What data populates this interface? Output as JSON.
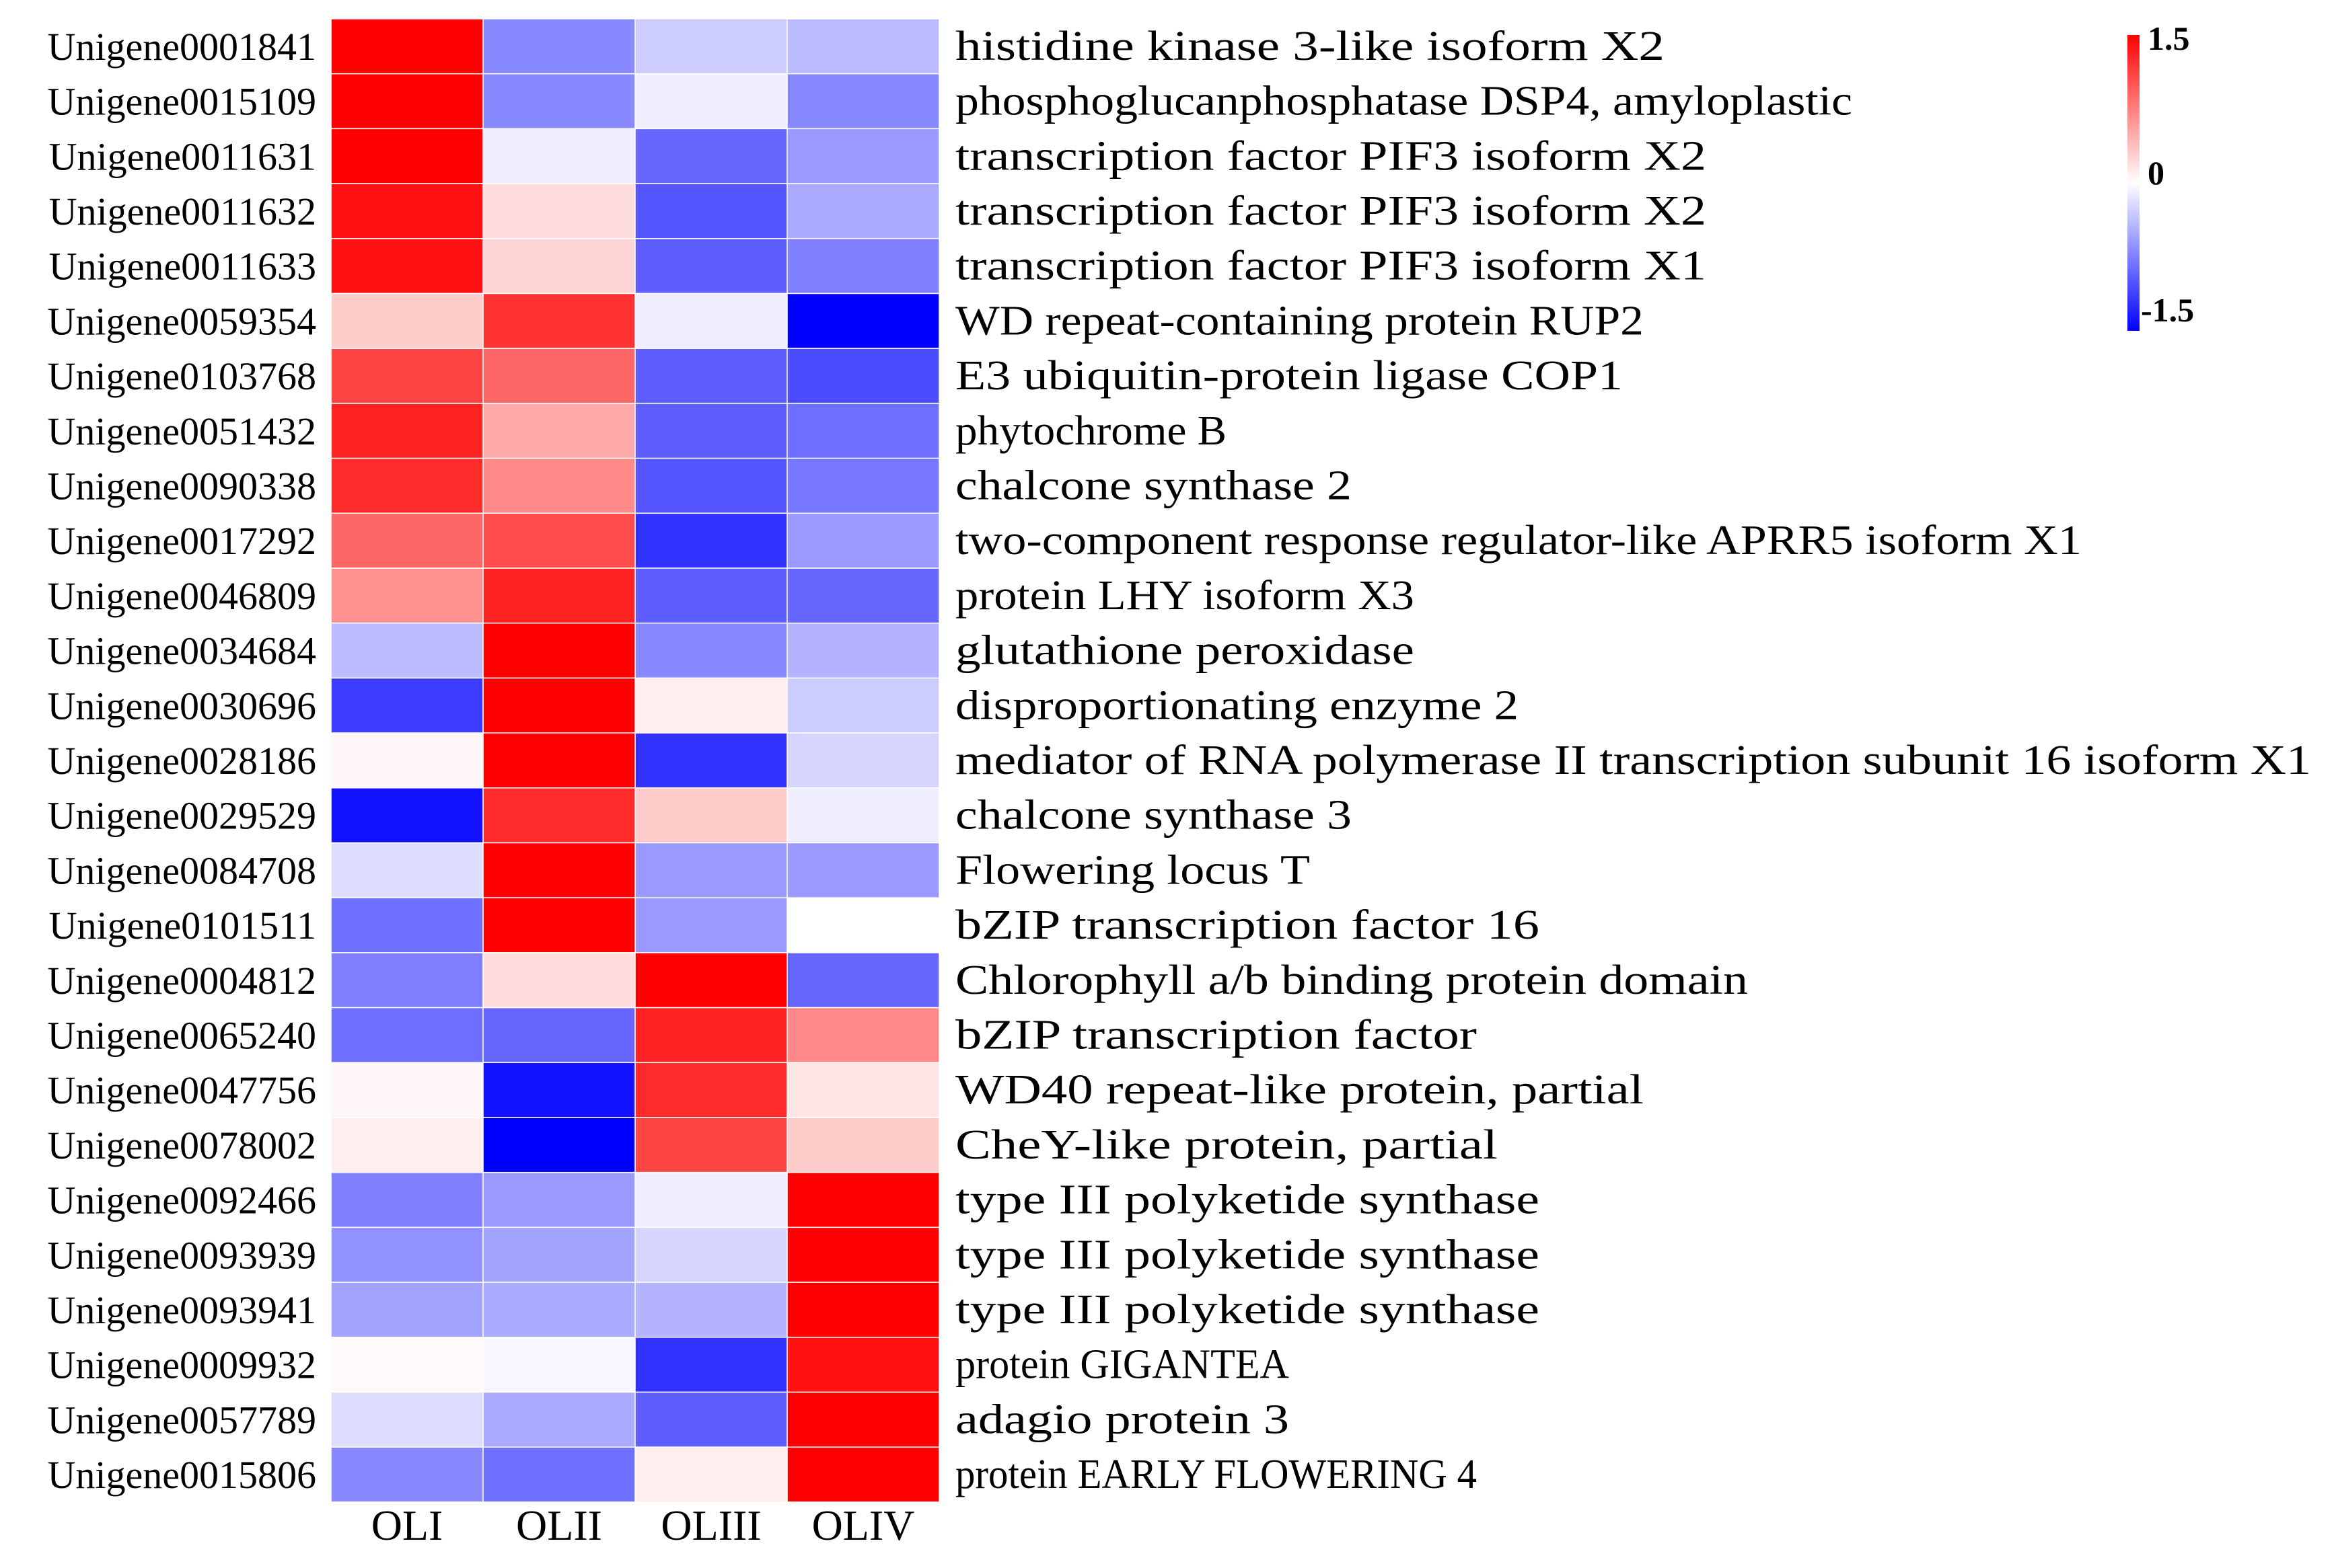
{
  "chart_data": {
    "type": "heatmap",
    "columns": [
      "OLI",
      "OLII",
      "OLIII",
      "OLIV"
    ],
    "rows": [
      {
        "id": "Unigene0001841",
        "annotation": "histidine kinase 3-like isoform X2",
        "values": [
          1.5,
          -0.7,
          -0.3,
          -0.4
        ]
      },
      {
        "id": "Unigene0015109",
        "annotation": "phosphoglucanphosphatase DSP4, amyloplastic",
        "values": [
          1.5,
          -0.7,
          -0.1,
          -0.7
        ]
      },
      {
        "id": "Unigene0011631",
        "annotation": "transcription factor PIF3 isoform X2",
        "values": [
          1.5,
          -0.1,
          -0.9,
          -0.6
        ]
      },
      {
        "id": "Unigene0011632",
        "annotation": "transcription factor PIF3 isoform X2",
        "values": [
          1.4,
          0.2,
          -1.0,
          -0.5
        ]
      },
      {
        "id": "Unigene0011633",
        "annotation": "transcription factor PIF3 isoform X1",
        "values": [
          1.4,
          0.25,
          -0.95,
          -0.75
        ]
      },
      {
        "id": "Unigene0059354",
        "annotation": "WD repeat-containing protein RUP2",
        "values": [
          0.3,
          1.2,
          -0.1,
          -1.5
        ]
      },
      {
        "id": "Unigene0103768",
        "annotation": "E3 ubiquitin-protein ligase COP1",
        "values": [
          1.1,
          0.9,
          -0.95,
          -1.05
        ]
      },
      {
        "id": "Unigene0051432",
        "annotation": "phytochrome B",
        "values": [
          1.3,
          0.5,
          -0.95,
          -0.85
        ]
      },
      {
        "id": "Unigene0090338",
        "annotation": "chalcone synthase 2",
        "values": [
          1.25,
          0.7,
          -1.0,
          -0.8
        ]
      },
      {
        "id": "Unigene0017292",
        "annotation": "two-component response regulator-like APRR5 isoform X1",
        "values": [
          0.9,
          1.05,
          -1.2,
          -0.6
        ]
      },
      {
        "id": "Unigene0046809",
        "annotation": "protein LHY isoform X3",
        "values": [
          0.65,
          1.3,
          -0.95,
          -0.9
        ]
      },
      {
        "id": "Unigene0034684",
        "annotation": "glutathione peroxidase",
        "values": [
          -0.4,
          1.5,
          -0.7,
          -0.45
        ]
      },
      {
        "id": "Unigene0030696",
        "annotation": "disproportionating enzyme 2",
        "values": [
          -1.15,
          1.5,
          0.1,
          -0.3
        ]
      },
      {
        "id": "Unigene0028186",
        "annotation": "mediator of RNA polymerase II transcription subunit 16 isoform X1",
        "values": [
          0.05,
          1.5,
          -1.2,
          -0.25
        ]
      },
      {
        "id": "Unigene0029529",
        "annotation": "chalcone synthase 3",
        "values": [
          -1.4,
          1.25,
          0.3,
          -0.1
        ]
      },
      {
        "id": "Unigene0084708",
        "annotation": "Flowering locus T",
        "values": [
          -0.2,
          1.5,
          -0.6,
          -0.6
        ]
      },
      {
        "id": "Unigene0101511",
        "annotation": "bZIP transcription factor 16",
        "values": [
          -0.85,
          1.5,
          -0.6,
          0.0
        ]
      },
      {
        "id": "Unigene0004812",
        "annotation": "Chlorophyll a/b binding protein domain",
        "values": [
          -0.75,
          0.2,
          1.5,
          -0.9
        ]
      },
      {
        "id": "Unigene0065240",
        "annotation": "bZIP transcription factor",
        "values": [
          -0.85,
          -0.9,
          1.3,
          0.7
        ]
      },
      {
        "id": "Unigene0047756",
        "annotation": "WD40 repeat-like protein, partial",
        "values": [
          0.05,
          -1.4,
          1.25,
          0.15
        ]
      },
      {
        "id": "Unigene0078002",
        "annotation": "CheY-like protein, partial",
        "values": [
          0.1,
          -1.5,
          1.1,
          0.3
        ]
      },
      {
        "id": "Unigene0092466",
        "annotation": "type III polyketide synthase",
        "values": [
          -0.75,
          -0.6,
          -0.1,
          1.5
        ]
      },
      {
        "id": "Unigene0093939",
        "annotation": "type III polyketide synthase",
        "values": [
          -0.65,
          -0.55,
          -0.25,
          1.5
        ]
      },
      {
        "id": "Unigene0093941",
        "annotation": "type III polyketide synthase",
        "values": [
          -0.55,
          -0.5,
          -0.45,
          1.5
        ]
      },
      {
        "id": "Unigene0009932",
        "annotation": "protein GIGANTEA",
        "values": [
          0.03,
          -0.05,
          -1.2,
          1.4
        ]
      },
      {
        "id": "Unigene0057789",
        "annotation": "adagio protein 3",
        "values": [
          -0.2,
          -0.5,
          -0.95,
          1.5
        ]
      },
      {
        "id": "Unigene0015806",
        "annotation": "protein EARLY FLOWERING 4",
        "values": [
          -0.7,
          -0.85,
          0.1,
          1.5
        ]
      }
    ],
    "color_scale": {
      "min": -1.5,
      "mid": 0,
      "max": 1.5,
      "low_color": "#0000ff",
      "mid_color": "#ffffff",
      "high_color": "#ff0000",
      "tick_labels": [
        "1.5",
        "0",
        "-1.5"
      ]
    }
  }
}
